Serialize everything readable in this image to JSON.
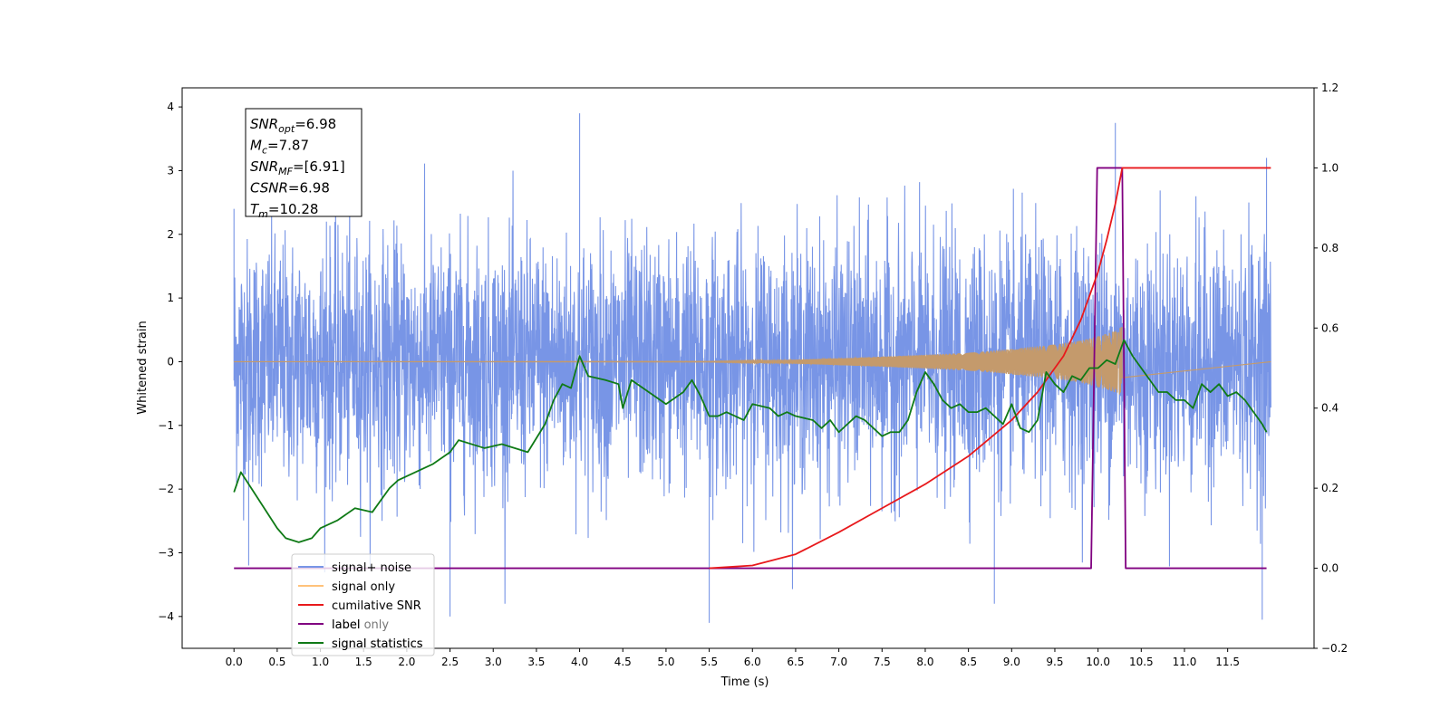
{
  "chart_data": {
    "type": "line",
    "xlabel": "Time (s)",
    "ylabel": "Whitened strain",
    "xlim": [
      -0.6,
      12.5
    ],
    "ylim": [
      -4.5,
      4.3
    ],
    "y2lim": [
      -0.2,
      1.2
    ],
    "x_ticks": [
      0.0,
      0.5,
      1.0,
      1.5,
      2.0,
      2.5,
      3.0,
      3.5,
      4.0,
      4.5,
      5.0,
      5.5,
      6.0,
      6.5,
      7.0,
      7.5,
      8.0,
      8.5,
      9.0,
      9.5,
      10.0,
      10.5,
      11.0,
      11.5
    ],
    "x_tick_labels": [
      "0.0",
      "0.5",
      "1.0",
      "1.5",
      "2.0",
      "2.5",
      "3.0",
      "3.5",
      "4.0",
      "4.5",
      "5.0",
      "5.5",
      "6.0",
      "6.5",
      "7.0",
      "7.5",
      "8.0",
      "8.5",
      "9.0",
      "9.5",
      "10.0",
      "10.5",
      "11.0",
      "11.5"
    ],
    "y_ticks": [
      -4,
      -3,
      -2,
      -1,
      0,
      1,
      2,
      3,
      4
    ],
    "y_tick_labels": [
      "−4",
      "−3",
      "−2",
      "−1",
      "0",
      "1",
      "2",
      "3",
      "4"
    ],
    "y2_ticks": [
      -0.2,
      0.0,
      0.2,
      0.4,
      0.6,
      0.8,
      1.0,
      1.2
    ],
    "y2_tick_labels": [
      "−0.2",
      "0.0",
      "0.2",
      "0.4",
      "0.6",
      "0.8",
      "1.0",
      "1.2"
    ],
    "grid": false,
    "legend_position": "lower-left",
    "annotation": {
      "lines": [
        {
          "main": "SNR",
          "sub": "opt",
          "value": "=6.98"
        },
        {
          "main": "M",
          "sub": "c",
          "value": "=7.87"
        },
        {
          "main": "SNR",
          "sub": "MF",
          "value": "=[6.91]"
        },
        {
          "main": "CSNR",
          "sub": "",
          "value": "=6.98"
        },
        {
          "main": "T",
          "sub": "m",
          "value": "=10.28"
        }
      ]
    },
    "series": [
      {
        "name": "signal+ noise",
        "axis": "left",
        "color": "#7895e6",
        "style": "noise-band",
        "t_start": 0.0,
        "t_end": 12.0,
        "peak_values": [
          {
            "x": 0.0,
            "y": 2.4
          },
          {
            "x": 0.17,
            "y": -3.2
          },
          {
            "x": 1.07,
            "y": 2.2
          },
          {
            "x": 2.5,
            "y": -4.0
          },
          {
            "x": 4.0,
            "y": 3.9
          },
          {
            "x": 5.5,
            "y": -4.1
          },
          {
            "x": 8.8,
            "y": -3.8
          },
          {
            "x": 10.2,
            "y": 3.75
          },
          {
            "x": 11.9,
            "y": -4.05
          },
          {
            "x": 11.95,
            "y": 3.2
          }
        ]
      },
      {
        "name": "signal only",
        "axis": "left",
        "color": "#c49a6c",
        "style": "chirp",
        "t_start": 0.0,
        "t_merger": 10.28,
        "t_end": 12.0,
        "x": [
          0.0,
          5.5,
          6.5,
          7.5,
          8.5,
          9.0,
          9.5,
          9.8,
          10.0,
          10.15,
          10.28
        ],
        "amplitude": [
          0.0,
          0.005,
          0.03,
          0.08,
          0.14,
          0.2,
          0.27,
          0.33,
          0.4,
          0.46,
          0.55
        ]
      },
      {
        "name": "cumilative SNR",
        "axis": "right",
        "color": "#e8191c",
        "x": [
          5.5,
          6.0,
          6.5,
          7.0,
          7.5,
          8.0,
          8.5,
          9.0,
          9.3,
          9.6,
          9.8,
          10.0,
          10.1,
          10.2,
          10.28,
          12.0
        ],
        "values": [
          0.0,
          0.007,
          0.035,
          0.09,
          0.15,
          0.21,
          0.28,
          0.37,
          0.44,
          0.53,
          0.62,
          0.74,
          0.82,
          0.91,
          1.0,
          1.0
        ]
      },
      {
        "name": "label",
        "axis": "right",
        "color": "#800080",
        "x": [
          0.0,
          9.92,
          9.99,
          10.28,
          10.32,
          11.95
        ],
        "values": [
          0.0,
          0.0,
          1.0,
          1.0,
          0.0,
          0.0
        ]
      },
      {
        "name": "signal statistics",
        "axis": "right",
        "color": "#0f7a16",
        "x": [
          0.0,
          0.08,
          0.2,
          0.35,
          0.5,
          0.6,
          0.75,
          0.9,
          1.0,
          1.2,
          1.4,
          1.6,
          1.8,
          1.9,
          2.1,
          2.3,
          2.5,
          2.6,
          2.9,
          3.1,
          3.4,
          3.6,
          3.7,
          3.8,
          3.9,
          4.0,
          4.1,
          4.3,
          4.45,
          4.5,
          4.6,
          4.8,
          5.0,
          5.2,
          5.3,
          5.4,
          5.5,
          5.6,
          5.7,
          5.9,
          6.0,
          6.2,
          6.3,
          6.4,
          6.5,
          6.7,
          6.8,
          6.9,
          7.0,
          7.1,
          7.2,
          7.3,
          7.4,
          7.5,
          7.6,
          7.7,
          7.8,
          7.9,
          8.0,
          8.1,
          8.2,
          8.3,
          8.4,
          8.5,
          8.6,
          8.7,
          8.9,
          9.0,
          9.1,
          9.2,
          9.3,
          9.4,
          9.5,
          9.6,
          9.7,
          9.8,
          9.9,
          10.0,
          10.1,
          10.2,
          10.3,
          10.4,
          10.5,
          10.6,
          10.7,
          10.8,
          10.9,
          11.0,
          11.1,
          11.2,
          11.3,
          11.4,
          11.5,
          11.6,
          11.7,
          11.8,
          11.9,
          11.95
        ],
        "values": [
          0.19,
          0.24,
          0.2,
          0.15,
          0.1,
          0.075,
          0.065,
          0.075,
          0.1,
          0.12,
          0.15,
          0.14,
          0.2,
          0.22,
          0.24,
          0.26,
          0.29,
          0.32,
          0.3,
          0.31,
          0.29,
          0.36,
          0.42,
          0.46,
          0.45,
          0.53,
          0.48,
          0.47,
          0.46,
          0.4,
          0.47,
          0.44,
          0.41,
          0.44,
          0.47,
          0.43,
          0.38,
          0.38,
          0.39,
          0.37,
          0.41,
          0.4,
          0.38,
          0.39,
          0.38,
          0.37,
          0.35,
          0.37,
          0.34,
          0.36,
          0.38,
          0.37,
          0.35,
          0.33,
          0.34,
          0.34,
          0.37,
          0.44,
          0.49,
          0.46,
          0.42,
          0.4,
          0.41,
          0.39,
          0.39,
          0.4,
          0.36,
          0.41,
          0.35,
          0.34,
          0.37,
          0.49,
          0.46,
          0.44,
          0.48,
          0.47,
          0.5,
          0.5,
          0.52,
          0.51,
          0.57,
          0.53,
          0.5,
          0.47,
          0.44,
          0.44,
          0.42,
          0.42,
          0.4,
          0.46,
          0.44,
          0.46,
          0.43,
          0.44,
          0.42,
          0.39,
          0.36,
          0.34
        ]
      }
    ],
    "legend_entries": [
      {
        "label": "signal+ noise",
        "color": "#7895e6"
      },
      {
        "label": "signal only",
        "color": "#ffc27a"
      },
      {
        "label": "cumilative SNR",
        "color": "#e8191c"
      },
      {
        "label": "label",
        "color": "#800080"
      },
      {
        "label": "signal statistics",
        "color": "#0f7a16"
      }
    ],
    "legend_hidden_labels": [
      "label only",
      "signal statistics"
    ]
  }
}
